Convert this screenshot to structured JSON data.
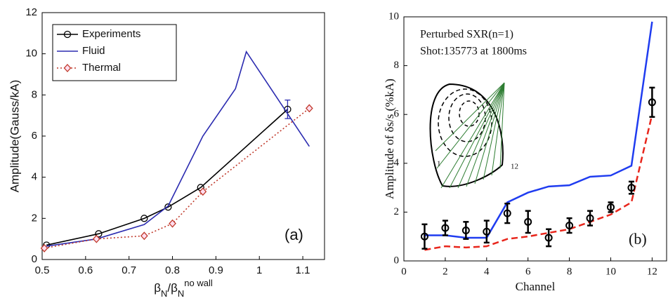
{
  "chart_data": [
    {
      "type": "line",
      "xlabel": [
        "β",
        "N",
        "/β",
        "N",
        "no wall"
      ],
      "ylabel": "Amplitude(Gauss/kA)",
      "annotation": "(a)",
      "xlim": [
        0.5,
        1.15
      ],
      "xticks": [
        0.5,
        0.6,
        0.7,
        0.8,
        0.9,
        1,
        1.1
      ],
      "ylim": [
        0,
        12
      ],
      "yticks": [
        0,
        2,
        4,
        6,
        8,
        10,
        12
      ],
      "legend": "upper left",
      "grid": false,
      "series": [
        {
          "name": "Experiments",
          "color": "#000000",
          "marker": "circle",
          "dash": "solid",
          "x": [
            0.51,
            0.63,
            0.735,
            0.79,
            0.865,
            1.065
          ],
          "values": [
            0.7,
            1.25,
            2.0,
            2.55,
            3.5,
            7.3
          ],
          "errors": [
            null,
            null,
            null,
            null,
            null,
            0.45
          ]
        },
        {
          "name": "Fluid",
          "color": "#2b2bb0",
          "marker": "none",
          "dash": "solid",
          "x": [
            0.51,
            0.625,
            0.735,
            0.79,
            0.87,
            0.945,
            0.97,
            1.115
          ],
          "values": [
            0.65,
            1.0,
            1.7,
            2.6,
            6.0,
            8.3,
            10.1,
            5.5
          ]
        },
        {
          "name": "Thermal",
          "color": "#c0392b",
          "marker": "diamond",
          "dash": "dotted",
          "x": [
            0.505,
            0.625,
            0.735,
            0.8,
            0.87,
            1.115
          ],
          "values": [
            0.55,
            1.0,
            1.15,
            1.75,
            3.3,
            7.35
          ]
        }
      ]
    },
    {
      "type": "line",
      "xlabel": [
        "Channel"
      ],
      "ylabel": "Amplitude of δs/s (%kA)",
      "annotation": "(b)",
      "text": [
        "Perturbed SXR(n=1)",
        "Shot:135773 at 1800ms"
      ],
      "inset_labels": [
        "1",
        "12"
      ],
      "xlim": [
        0,
        12.7
      ],
      "xticks": [
        0,
        2,
        4,
        6,
        8,
        10,
        12
      ],
      "ylim": [
        0,
        10
      ],
      "yticks": [
        0,
        2,
        4,
        6,
        8,
        10
      ],
      "grid": false,
      "series": [
        {
          "color": "#1f3cf0",
          "marker": "none",
          "dash": "solid",
          "x": [
            1,
            2,
            3,
            4,
            5,
            6,
            7,
            8,
            9,
            10,
            11,
            12
          ],
          "values": [
            1.05,
            1.05,
            0.95,
            0.95,
            2.4,
            2.8,
            3.05,
            3.1,
            3.45,
            3.5,
            3.9,
            9.8
          ]
        },
        {
          "color": "#e8261c",
          "marker": "none",
          "dash": "dashed",
          "x": [
            1,
            2,
            3,
            4,
            5,
            6,
            7,
            8,
            9,
            10,
            11,
            12
          ],
          "values": [
            0.45,
            0.6,
            0.55,
            0.6,
            0.9,
            1.0,
            1.15,
            1.3,
            1.6,
            1.9,
            2.4,
            6.0
          ]
        },
        {
          "color": "#000000",
          "marker": "circle",
          "dash": "none",
          "x": [
            1,
            2,
            3,
            4,
            5,
            6,
            7,
            8,
            9,
            10,
            11,
            12
          ],
          "values": [
            1.0,
            1.35,
            1.25,
            1.2,
            1.95,
            1.6,
            0.95,
            1.45,
            1.75,
            2.2,
            3.0,
            6.5
          ],
          "errors": [
            0.5,
            0.3,
            0.35,
            0.45,
            0.4,
            0.45,
            0.35,
            0.3,
            0.3,
            0.2,
            0.25,
            0.6
          ]
        }
      ]
    }
  ]
}
